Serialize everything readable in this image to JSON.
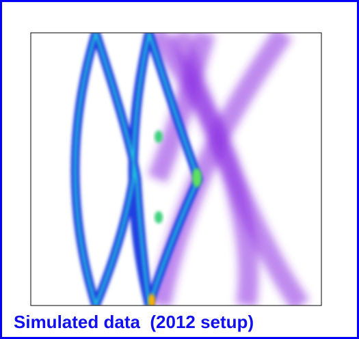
{
  "caption": "Simulated data  (2012 setup)"
}
